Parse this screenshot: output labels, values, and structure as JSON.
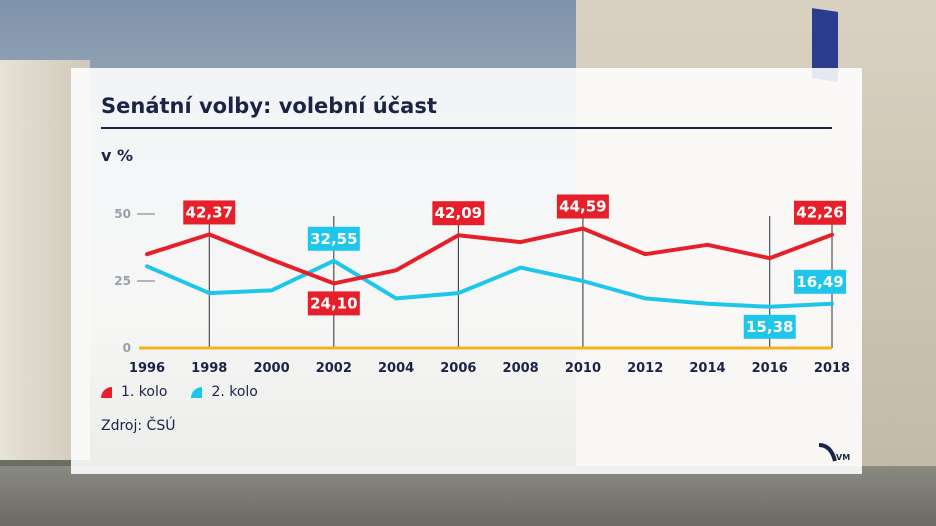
{
  "title": "Senátní volby: volební účast",
  "unit": "v %",
  "source": "Zdroj: ČSÚ",
  "logo_text": "VM",
  "colors": {
    "series1": "#e5202a",
    "series2": "#1fc6ec",
    "text": "#1b2346",
    "baseline": "#f3b221"
  },
  "chart_data": {
    "type": "line",
    "x": [
      1996,
      1998,
      2000,
      2002,
      2004,
      2006,
      2008,
      2010,
      2012,
      2014,
      2016,
      2018
    ],
    "x_ticks": [
      "1996",
      "1998",
      "2000",
      "2002",
      "2004",
      "2006",
      "2008",
      "2010",
      "2012",
      "2014",
      "2016",
      "2018"
    ],
    "y_ticks": [
      0,
      25,
      50
    ],
    "y_tick_labels": [
      "0",
      "25",
      "50"
    ],
    "ylim": [
      0,
      50
    ],
    "series": [
      {
        "name": "1. kolo",
        "values": [
          35.0,
          42.37,
          33.0,
          24.1,
          29.0,
          42.09,
          39.5,
          44.59,
          35.0,
          38.5,
          33.5,
          42.26
        ]
      },
      {
        "name": "2. kolo",
        "values": [
          30.5,
          20.5,
          21.5,
          32.55,
          18.5,
          20.5,
          30.0,
          25.0,
          18.5,
          16.5,
          15.38,
          16.49
        ]
      }
    ],
    "annotations": [
      {
        "series": 0,
        "x": 1998,
        "value": 42.37,
        "label": "42,37",
        "position": "above"
      },
      {
        "series": 1,
        "x": 2002,
        "value": 32.55,
        "label": "32,55",
        "position": "above"
      },
      {
        "series": 0,
        "x": 2002,
        "value": 24.1,
        "label": "24,10",
        "position": "below"
      },
      {
        "series": 0,
        "x": 2006,
        "value": 42.09,
        "label": "42,09",
        "position": "above"
      },
      {
        "series": 0,
        "x": 2010,
        "value": 44.59,
        "label": "44,59",
        "position": "above"
      },
      {
        "series": 0,
        "x": 2018,
        "value": 42.26,
        "label": "42,26",
        "position": "above"
      },
      {
        "series": 1,
        "x": 2018,
        "value": 16.49,
        "label": "16,49",
        "position": "above"
      },
      {
        "series": 1,
        "x": 2016,
        "value": 15.38,
        "label": "15,38",
        "position": "below"
      }
    ],
    "legend_position": "bottom-left",
    "grid": false
  }
}
